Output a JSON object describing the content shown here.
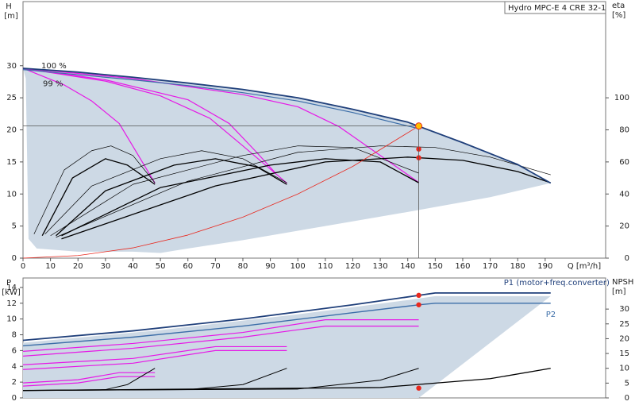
{
  "chart_data": [
    {
      "type": "line",
      "title": "Hydro MPC-E 4 CRE 32-1",
      "ylabel": "H",
      "yunit": "[m]",
      "y2label": "eta",
      "y2unit": "[%]",
      "xlabel": "Q [m³/h]",
      "xlim": [
        0,
        212
      ],
      "xticks": [
        0,
        10,
        20,
        30,
        40,
        50,
        60,
        70,
        80,
        90,
        100,
        110,
        120,
        130,
        140,
        150,
        160,
        170,
        180,
        190
      ],
      "ylim": [
        0,
        40
      ],
      "yticks": [
        0,
        5,
        10,
        15,
        20,
        25,
        30
      ],
      "y2lim": [
        0,
        160
      ],
      "y2ticks": [
        0,
        20,
        40,
        60,
        80,
        100
      ],
      "series": [
        {
          "style": "area",
          "color": "#cdd9e5",
          "x": [
            0,
            20,
            40,
            60,
            80,
            100,
            120,
            140,
            160,
            180,
            192,
            170,
            140,
            110,
            80,
            60,
            50,
            40,
            20,
            5,
            2,
            1
          ],
          "values": [
            29.6,
            29,
            28.2,
            27.3,
            26.3,
            25,
            23.2,
            21.2,
            18,
            14.6,
            11.7,
            9.5,
            7.2,
            5,
            2.8,
            1.5,
            0.8,
            1,
            1,
            1.5,
            3,
            28
          ]
        },
        {
          "style": "line",
          "color": "#e619e6",
          "width": 1.2,
          "x": [
            0,
            15,
            25,
            35,
            42,
            48
          ],
          "values": [
            29.6,
            27,
            24.5,
            21,
            16,
            11.7
          ]
        },
        {
          "style": "line",
          "color": "#e619e6",
          "width": 1.2,
          "x": [
            0,
            30,
            50,
            68,
            80,
            96
          ],
          "values": [
            29.6,
            27.6,
            25.3,
            21.8,
            17.5,
            11.7
          ]
        },
        {
          "style": "line",
          "color": "#e619e6",
          "width": 1.2,
          "x": [
            0,
            30,
            60,
            75,
            85,
            92
          ],
          "values": [
            29.6,
            27.8,
            24.7,
            21,
            16.5,
            13.2
          ]
        },
        {
          "style": "line",
          "color": "#e619e6",
          "width": 1.2,
          "x": [
            0,
            40,
            80,
            100,
            115,
            130,
            144
          ],
          "values": [
            29.6,
            28,
            25.5,
            23.6,
            20.5,
            16,
            11.8
          ]
        },
        {
          "style": "line",
          "color": "#000000",
          "width": 0.7,
          "axis": "y2",
          "x": [
            4,
            15,
            25,
            32,
            40,
            48
          ],
          "values": [
            15,
            55,
            67,
            70,
            64,
            47
          ]
        },
        {
          "style": "line",
          "color": "#000000",
          "width": 1.3,
          "axis": "y2",
          "x": [
            7,
            18,
            30,
            38,
            48
          ],
          "values": [
            14,
            50,
            62,
            58,
            46
          ]
        },
        {
          "style": "line",
          "color": "#000000",
          "width": 0.7,
          "axis": "y2",
          "x": [
            8,
            25,
            50,
            65,
            80,
            96
          ],
          "values": [
            15,
            45,
            62,
            67,
            62,
            47
          ]
        },
        {
          "style": "line",
          "color": "#000000",
          "width": 1.3,
          "axis": "y2",
          "x": [
            12,
            30,
            55,
            70,
            85,
            96
          ],
          "values": [
            14,
            42,
            58,
            62,
            57,
            46
          ]
        },
        {
          "style": "line",
          "color": "#000000",
          "width": 0.7,
          "axis": "y2",
          "x": [
            10,
            40,
            80,
            100,
            120,
            144
          ],
          "values": [
            14,
            46,
            64,
            70,
            69,
            53
          ]
        },
        {
          "style": "line",
          "color": "#000000",
          "width": 1.3,
          "axis": "y2",
          "x": [
            14,
            50,
            90,
            110,
            130,
            144
          ],
          "values": [
            14,
            44,
            58,
            62,
            60,
            47
          ]
        },
        {
          "style": "line",
          "color": "#000000",
          "width": 0.7,
          "axis": "y2",
          "x": [
            12,
            60,
            100,
            130,
            150,
            170,
            192
          ],
          "values": [
            13,
            48,
            66,
            70,
            69,
            63,
            52
          ]
        },
        {
          "style": "line",
          "color": "#000000",
          "width": 1.3,
          "axis": "y2",
          "x": [
            14,
            70,
            110,
            140,
            160,
            180,
            192
          ],
          "values": [
            12,
            45,
            60,
            63,
            61,
            54,
            47
          ]
        },
        {
          "style": "line",
          "color": "#e8281e",
          "width": 0.8,
          "x": [
            0,
            20,
            40,
            60,
            80,
            100,
            120,
            144
          ],
          "values": [
            0,
            0.4,
            1.6,
            3.6,
            6.4,
            10,
            14.3,
            20.6
          ]
        },
        {
          "style": "line",
          "name": "99 %",
          "color": "#3c6ea8",
          "width": 1.2,
          "x": [
            0,
            20,
            40,
            60,
            80,
            100,
            120,
            140,
            144
          ],
          "values": [
            29.4,
            28.6,
            27.8,
            26.9,
            25.8,
            24.5,
            22.7,
            20.6,
            20.2
          ]
        },
        {
          "style": "line",
          "name": "100 %",
          "color": "#1f3f7a",
          "width": 1.8,
          "x": [
            0,
            20,
            40,
            60,
            80,
            100,
            120,
            140,
            160,
            180,
            192
          ],
          "values": [
            29.6,
            29,
            28.2,
            27.3,
            26.3,
            25,
            23.2,
            21.2,
            18,
            14.6,
            11.7
          ]
        },
        {
          "style": "point",
          "color": "#e8281e",
          "axis": "y2",
          "x": [
            144,
            144
          ],
          "values": [
            68,
            62.6
          ]
        },
        {
          "style": "point",
          "color": "#ffc000",
          "guides": true,
          "x": [
            144
          ],
          "values": [
            20.6
          ]
        }
      ]
    },
    {
      "type": "line",
      "ylabel": "P",
      "yunit": "[kW]",
      "y2label": "NPSH",
      "y2unit": "[m]",
      "xlim": [
        0,
        212
      ],
      "ylim": [
        0,
        15.2
      ],
      "yticks": [
        0,
        2,
        4,
        6,
        8,
        10,
        12,
        14
      ],
      "y2lim": [
        0,
        40.5
      ],
      "y2ticks": [
        0,
        5,
        10,
        15,
        20,
        25,
        30
      ],
      "series": [
        {
          "style": "area",
          "color": "#cdd9e5",
          "x": [
            0,
            50,
            100,
            140,
            150,
            192,
            144,
            0
          ],
          "values": [
            7,
            8.6,
            10.6,
            12.4,
            12.9,
            12.9,
            0,
            0
          ]
        },
        {
          "style": "line",
          "color": "#e619e6",
          "width": 1.2,
          "x": [
            0,
            20,
            35,
            48
          ],
          "values": [
            1.9,
            2.3,
            3.2,
            3.2
          ]
        },
        {
          "style": "line",
          "color": "#e619e6",
          "width": 1.2,
          "x": [
            0,
            20,
            35,
            48
          ],
          "values": [
            1.5,
            1.9,
            2.7,
            2.7
          ]
        },
        {
          "style": "line",
          "color": "#e619e6",
          "width": 1.2,
          "x": [
            0,
            40,
            70,
            96
          ],
          "values": [
            4.2,
            5,
            6.5,
            6.5
          ]
        },
        {
          "style": "line",
          "color": "#e619e6",
          "width": 1.2,
          "x": [
            0,
            40,
            70,
            96
          ],
          "values": [
            3.6,
            4.4,
            6,
            6
          ]
        },
        {
          "style": "line",
          "color": "#e619e6",
          "width": 1.2,
          "x": [
            0,
            40,
            80,
            110,
            144
          ],
          "values": [
            5.9,
            6.9,
            8.3,
            9.9,
            9.9
          ]
        },
        {
          "style": "line",
          "color": "#e619e6",
          "width": 1.2,
          "x": [
            0,
            40,
            80,
            110,
            144
          ],
          "values": [
            5.3,
            6.3,
            7.7,
            9.1,
            9.1
          ]
        },
        {
          "style": "line",
          "color": "#000000",
          "width": 1,
          "axis": "y2",
          "x": [
            0,
            30,
            38,
            48
          ],
          "values": [
            2.5,
            2.8,
            4.5,
            10
          ]
        },
        {
          "style": "line",
          "color": "#000000",
          "width": 1,
          "axis": "y2",
          "x": [
            0,
            60,
            80,
            96
          ],
          "values": [
            2.5,
            2.8,
            4.5,
            10
          ]
        },
        {
          "style": "line",
          "color": "#000000",
          "width": 1,
          "axis": "y2",
          "x": [
            0,
            100,
            130,
            144
          ],
          "values": [
            2.5,
            3,
            6,
            10
          ]
        },
        {
          "style": "line",
          "color": "#000000",
          "width": 1.3,
          "axis": "y2",
          "x": [
            0,
            130,
            170,
            192
          ],
          "values": [
            2.5,
            3.5,
            6.5,
            10
          ]
        },
        {
          "style": "line",
          "name": "P2",
          "color": "#3c6ea8",
          "width": 1.4,
          "x": [
            0,
            40,
            80,
            120,
            144,
            150,
            192
          ],
          "values": [
            6.6,
            7.7,
            9.1,
            10.8,
            11.8,
            12,
            12
          ]
        },
        {
          "style": "line",
          "name": "P1 (motor+freq.converter)",
          "color": "#1f3f7a",
          "width": 1.8,
          "x": [
            0,
            40,
            80,
            120,
            144,
            150,
            192
          ],
          "values": [
            7.3,
            8.5,
            10,
            11.8,
            13,
            13.3,
            13.3
          ]
        },
        {
          "style": "point",
          "color": "#e8281e",
          "x": [
            144,
            144
          ],
          "values": [
            13,
            11.8
          ]
        },
        {
          "style": "point",
          "color": "#e8281e",
          "axis": "y2",
          "x": [
            144
          ],
          "values": [
            3.3
          ]
        }
      ]
    }
  ]
}
